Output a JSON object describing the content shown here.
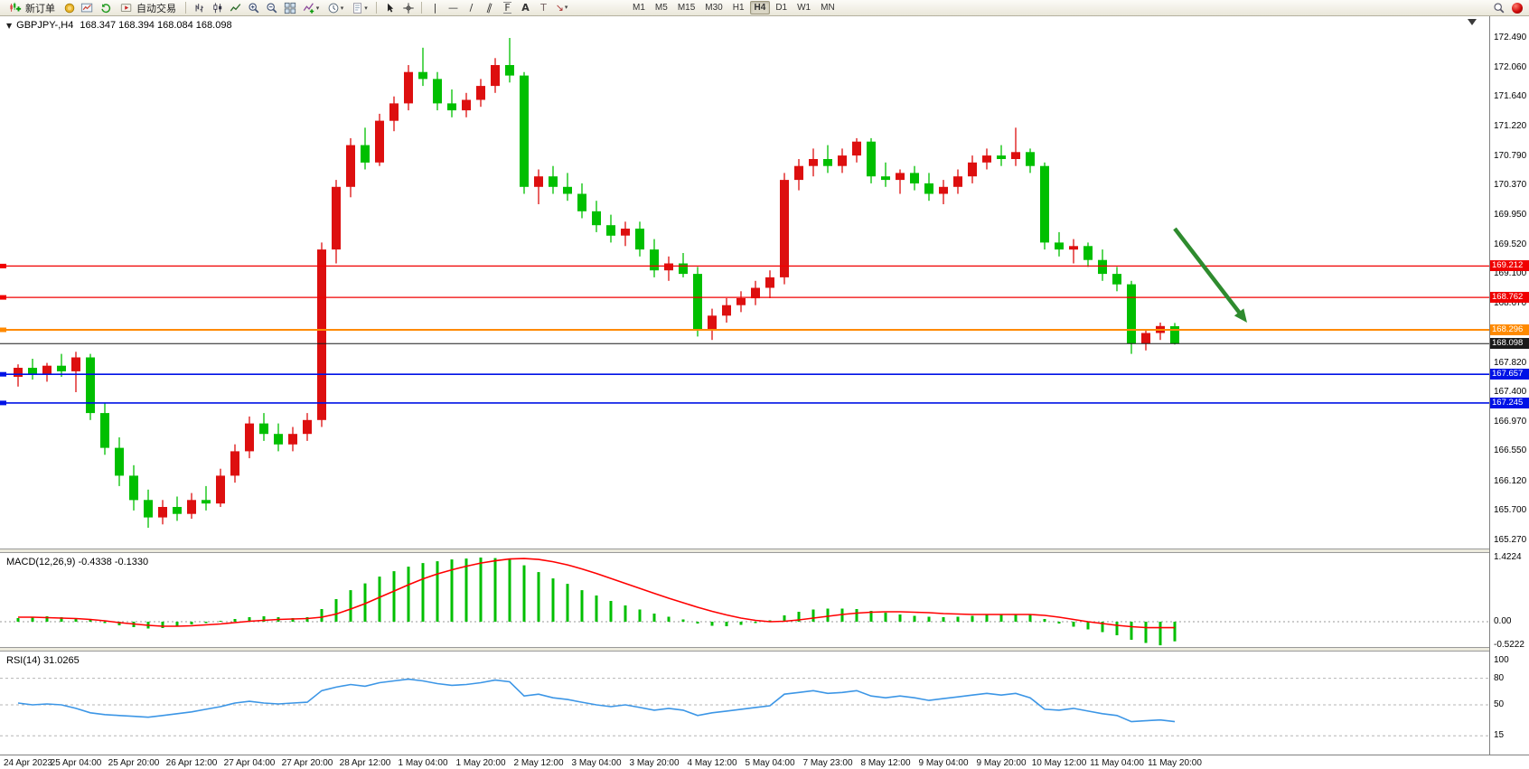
{
  "toolbar": {
    "new_order": "新订单",
    "autotrading": "自动交易",
    "timeframes": [
      "M1",
      "M5",
      "M15",
      "M30",
      "H1",
      "H4",
      "D1",
      "W1",
      "MN"
    ],
    "active_timeframe": "H4"
  },
  "chart": {
    "symbol_label": "GBPJPY-,H4",
    "ohlc_text": "168.347 168.394 168.084 168.098",
    "price_axis_labels": [
      "172.490",
      "172.060",
      "171.640",
      "171.220",
      "170.790",
      "170.370",
      "169.950",
      "169.520",
      "169.100",
      "168.670",
      "168.250",
      "167.820",
      "167.400",
      "166.970",
      "166.550",
      "166.120",
      "165.700",
      "165.270"
    ],
    "time_axis_labels": [
      "24 Apr 2023",
      "25 Apr 04:00",
      "25 Apr 20:00",
      "26 Apr 12:00",
      "27 Apr 04:00",
      "27 Apr 20:00",
      "28 Apr 12:00",
      "1 May 04:00",
      "1 May 20:00",
      "2 May 12:00",
      "3 May 04:00",
      "3 May 20:00",
      "4 May 12:00",
      "5 May 04:00",
      "7 May 23:00",
      "8 May 12:00",
      "9 May 04:00",
      "9 May 20:00",
      "10 May 12:00",
      "11 May 04:00",
      "11 May 20:00"
    ]
  },
  "macd_panel": {
    "label": "MACD(12,26,9) -0.4338 -0.1330",
    "scale_labels": [
      "1.4224",
      "0.00",
      "-0.5222"
    ]
  },
  "rsi_panel": {
    "label": "RSI(14) 31.0265",
    "scale_labels": [
      "100",
      "80",
      "50",
      "15"
    ]
  },
  "chart_data": {
    "type": "candlestick",
    "title": "GBPJPY- H4",
    "ylim": [
      165.27,
      172.49
    ],
    "x_label_every": 4,
    "colors": {
      "bull": "#dd0f0f",
      "bear": "#00bf00",
      "background": "#ffffff"
    },
    "candles": [
      [
        167.62,
        167.8,
        167.48,
        167.75
      ],
      [
        167.75,
        167.88,
        167.58,
        167.65
      ],
      [
        167.65,
        167.82,
        167.55,
        167.78
      ],
      [
        167.78,
        167.95,
        167.62,
        167.7
      ],
      [
        167.7,
        167.98,
        167.4,
        167.9
      ],
      [
        167.9,
        167.95,
        167.0,
        167.1
      ],
      [
        167.1,
        167.25,
        166.5,
        166.6
      ],
      [
        166.6,
        166.75,
        166.05,
        166.2
      ],
      [
        166.2,
        166.35,
        165.7,
        165.85
      ],
      [
        165.85,
        166.0,
        165.45,
        165.6
      ],
      [
        165.6,
        165.85,
        165.5,
        165.75
      ],
      [
        165.75,
        165.9,
        165.55,
        165.65
      ],
      [
        165.65,
        165.95,
        165.58,
        165.85
      ],
      [
        165.85,
        166.05,
        165.7,
        165.8
      ],
      [
        165.8,
        166.3,
        165.75,
        166.2
      ],
      [
        166.2,
        166.65,
        166.1,
        166.55
      ],
      [
        166.55,
        167.05,
        166.45,
        166.95
      ],
      [
        166.95,
        167.1,
        166.7,
        166.8
      ],
      [
        166.8,
        166.95,
        166.55,
        166.65
      ],
      [
        166.65,
        166.9,
        166.55,
        166.8
      ],
      [
        166.8,
        167.1,
        166.7,
        167.0
      ],
      [
        167.0,
        169.55,
        166.9,
        169.45
      ],
      [
        169.45,
        170.45,
        169.25,
        170.35
      ],
      [
        170.35,
        171.05,
        170.2,
        170.95
      ],
      [
        170.95,
        171.2,
        170.6,
        170.7
      ],
      [
        170.7,
        171.4,
        170.65,
        171.3
      ],
      [
        171.3,
        171.65,
        171.15,
        171.55
      ],
      [
        171.55,
        172.1,
        171.45,
        172.0
      ],
      [
        172.0,
        172.35,
        171.8,
        171.9
      ],
      [
        171.9,
        172.0,
        171.45,
        171.55
      ],
      [
        171.55,
        171.75,
        171.35,
        171.45
      ],
      [
        171.45,
        171.7,
        171.35,
        171.6
      ],
      [
        171.6,
        171.9,
        171.5,
        171.8
      ],
      [
        171.8,
        172.2,
        171.7,
        172.1
      ],
      [
        172.1,
        172.49,
        171.85,
        171.95
      ],
      [
        171.95,
        172.0,
        170.25,
        170.35
      ],
      [
        170.35,
        170.6,
        170.1,
        170.5
      ],
      [
        170.5,
        170.65,
        170.25,
        170.35
      ],
      [
        170.35,
        170.55,
        170.15,
        170.25
      ],
      [
        170.25,
        170.4,
        169.9,
        170.0
      ],
      [
        170.0,
        170.15,
        169.7,
        169.8
      ],
      [
        169.8,
        169.95,
        169.55,
        169.65
      ],
      [
        169.65,
        169.85,
        169.5,
        169.75
      ],
      [
        169.75,
        169.85,
        169.35,
        169.45
      ],
      [
        169.45,
        169.6,
        169.05,
        169.15
      ],
      [
        169.15,
        169.35,
        169.0,
        169.25
      ],
      [
        169.25,
        169.4,
        169.05,
        169.1
      ],
      [
        169.1,
        169.2,
        168.2,
        168.3
      ],
      [
        168.3,
        168.6,
        168.15,
        168.5
      ],
      [
        168.5,
        168.75,
        168.4,
        168.65
      ],
      [
        168.65,
        168.85,
        168.55,
        168.75
      ],
      [
        168.75,
        169.0,
        168.65,
        168.9
      ],
      [
        168.9,
        169.15,
        168.75,
        169.05
      ],
      [
        169.05,
        170.55,
        168.95,
        170.45
      ],
      [
        170.45,
        170.75,
        170.3,
        170.65
      ],
      [
        170.65,
        170.9,
        170.5,
        170.75
      ],
      [
        170.75,
        170.95,
        170.55,
        170.65
      ],
      [
        170.65,
        170.9,
        170.55,
        170.8
      ],
      [
        170.8,
        171.05,
        170.7,
        171.0
      ],
      [
        171.0,
        171.05,
        170.4,
        170.5
      ],
      [
        170.5,
        170.7,
        170.35,
        170.45
      ],
      [
        170.45,
        170.6,
        170.25,
        170.55
      ],
      [
        170.55,
        170.65,
        170.3,
        170.4
      ],
      [
        170.4,
        170.55,
        170.15,
        170.25
      ],
      [
        170.25,
        170.45,
        170.1,
        170.35
      ],
      [
        170.35,
        170.6,
        170.25,
        170.5
      ],
      [
        170.5,
        170.8,
        170.4,
        170.7
      ],
      [
        170.7,
        170.9,
        170.6,
        170.8
      ],
      [
        170.8,
        170.95,
        170.65,
        170.75
      ],
      [
        170.75,
        171.2,
        170.65,
        170.85
      ],
      [
        170.85,
        170.9,
        170.55,
        170.65
      ],
      [
        170.65,
        170.7,
        169.45,
        169.55
      ],
      [
        169.55,
        169.7,
        169.35,
        169.45
      ],
      [
        169.45,
        169.6,
        169.25,
        169.5
      ],
      [
        169.5,
        169.55,
        169.2,
        169.3
      ],
      [
        169.3,
        169.45,
        169.0,
        169.1
      ],
      [
        169.1,
        169.2,
        168.85,
        168.95
      ],
      [
        168.95,
        169.0,
        167.95,
        168.1
      ],
      [
        168.1,
        168.3,
        168.0,
        168.25
      ],
      [
        168.25,
        168.4,
        168.15,
        168.35
      ],
      [
        168.347,
        168.394,
        168.084,
        168.098
      ]
    ],
    "levels": [
      {
        "price": 169.212,
        "label": "169.212",
        "color": "#f00000",
        "width": 1.2
      },
      {
        "price": 168.762,
        "label": "168.762",
        "color": "#f00000",
        "width": 1.2
      },
      {
        "price": 168.296,
        "label": "168.296",
        "color": "#ff8a00",
        "width": 2
      },
      {
        "price": 167.657,
        "label": "167.657",
        "color": "#0012e6",
        "width": 1.6
      },
      {
        "price": 167.245,
        "label": "167.245",
        "color": "#0012e6",
        "width": 1.6
      }
    ],
    "bid": {
      "price": 168.098,
      "label": "168.098",
      "color": "#1a1a1a"
    },
    "arrow": {
      "color": "#2e8b2e",
      "start": {
        "bar": 80,
        "price": 169.75
      },
      "end": {
        "bar": 85,
        "price": 168.4
      }
    },
    "macd": {
      "params": "12,26,9",
      "current_macd": -0.4338,
      "current_signal": -0.133,
      "range": [
        -0.5222,
        1.4224
      ],
      "histogram_color": "#00bf00",
      "signal_color": "#ff0000",
      "histogram": [
        0.08,
        0.1,
        0.12,
        0.1,
        0.08,
        0.05,
        -0.03,
        -0.08,
        -0.12,
        -0.15,
        -0.14,
        -0.1,
        -0.06,
        -0.03,
        0.02,
        0.06,
        0.1,
        0.12,
        0.1,
        0.08,
        0.1,
        0.28,
        0.5,
        0.7,
        0.85,
        1.0,
        1.12,
        1.22,
        1.3,
        1.34,
        1.38,
        1.4,
        1.4224,
        1.41,
        1.38,
        1.25,
        1.1,
        0.96,
        0.84,
        0.7,
        0.58,
        0.46,
        0.36,
        0.27,
        0.18,
        0.11,
        0.05,
        -0.04,
        -0.09,
        -0.1,
        -0.07,
        -0.03,
        0.03,
        0.14,
        0.22,
        0.27,
        0.29,
        0.29,
        0.28,
        0.24,
        0.2,
        0.16,
        0.13,
        0.11,
        0.1,
        0.11,
        0.13,
        0.15,
        0.16,
        0.17,
        0.15,
        0.06,
        -0.04,
        -0.11,
        -0.17,
        -0.23,
        -0.3,
        -0.4,
        -0.47,
        -0.5222,
        -0.4338
      ],
      "signal": [
        0.1,
        0.1,
        0.09,
        0.08,
        0.07,
        0.05,
        0.02,
        -0.02,
        -0.05,
        -0.08,
        -0.1,
        -0.1,
        -0.09,
        -0.07,
        -0.05,
        -0.02,
        0.01,
        0.03,
        0.05,
        0.06,
        0.07,
        0.1,
        0.17,
        0.28,
        0.4,
        0.54,
        0.68,
        0.82,
        0.95,
        1.06,
        1.15,
        1.23,
        1.3,
        1.35,
        1.39,
        1.4,
        1.38,
        1.33,
        1.26,
        1.17,
        1.07,
        0.96,
        0.85,
        0.74,
        0.63,
        0.52,
        0.42,
        0.32,
        0.23,
        0.15,
        0.08,
        0.03,
        0.0,
        0.01,
        0.04,
        0.08,
        0.12,
        0.16,
        0.19,
        0.21,
        0.22,
        0.22,
        0.21,
        0.2,
        0.18,
        0.17,
        0.16,
        0.16,
        0.16,
        0.16,
        0.16,
        0.14,
        0.1,
        0.05,
        0.0,
        -0.04,
        -0.08,
        -0.11,
        -0.13,
        -0.133,
        -0.133
      ]
    },
    "rsi": {
      "params": "14",
      "current": 31.0265,
      "color": "#3c96e6",
      "levels": [
        80,
        50,
        15
      ],
      "values": [
        52,
        50,
        51,
        50,
        46,
        41,
        39,
        38,
        37,
        36,
        38,
        40,
        42,
        45,
        48,
        52,
        54,
        52,
        51,
        52,
        53,
        66,
        70,
        73,
        71,
        75,
        77,
        79,
        77,
        74,
        72,
        73,
        75,
        78,
        76,
        60,
        62,
        58,
        56,
        53,
        50,
        48,
        50,
        47,
        44,
        46,
        44,
        38,
        41,
        43,
        45,
        47,
        49,
        62,
        64,
        66,
        63,
        64,
        66,
        60,
        58,
        60,
        58,
        55,
        57,
        59,
        61,
        63,
        61,
        63,
        58,
        45,
        44,
        46,
        43,
        40,
        38,
        31,
        32,
        33,
        31.03
      ]
    }
  }
}
